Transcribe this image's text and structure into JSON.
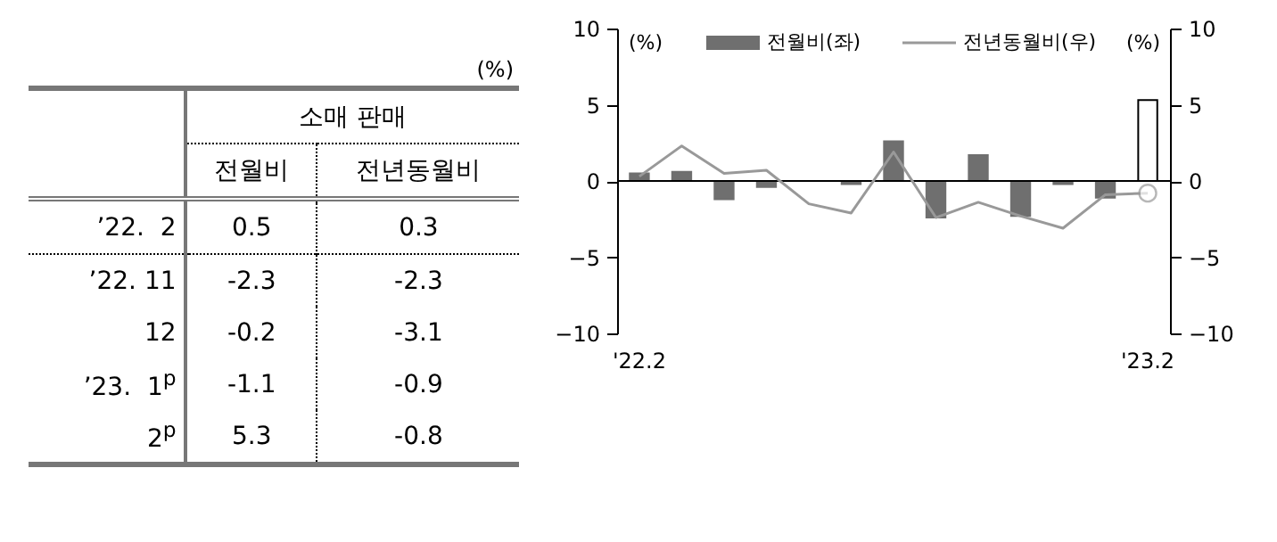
{
  "chart_data": [
    {
      "type": "other",
      "title": "소매 판매",
      "annotations": [
        "(%)"
      ],
      "data_labels": true,
      "categories": [
        "’22.  2",
        "’22. 11",
        "12",
        "’23.  1$^{p}$",
        "2$^{p}$"
      ],
      "series": [
        {
          "name": "전월비",
          "values": [
            0.5,
            -2.3,
            -0.2,
            -1.1,
            5.3
          ]
        },
        {
          "name": "전년동월비",
          "values": [
            0.3,
            -2.3,
            -3.1,
            -0.9,
            -0.8
          ]
        }
      ]
    },
    {
      "type": "bar",
      "ylabel": "(%)",
      "y2label": "(%)",
      "legend": "top",
      "categories": [
        "'22.2",
        null,
        null,
        null,
        null,
        null,
        null,
        null,
        null,
        null,
        null,
        null,
        "'23.2"
      ],
      "ylim": [
        -10,
        10
      ],
      "yticks": [
        -10,
        -5,
        0,
        5,
        10
      ],
      "y2lim": [
        -10,
        10
      ],
      "y2ticks": [
        -10,
        -5,
        0,
        5,
        10
      ],
      "series": [
        {
          "name": "전월비(좌)",
          "type": "bar",
          "color": "#6f6f6f",
          "colors": [
            "#6f6f6f",
            "#6f6f6f",
            "#6f6f6f",
            "#6f6f6f",
            "#6f6f6f",
            "#6f6f6f",
            "#6f6f6f",
            "#6f6f6f",
            "#6f6f6f",
            "#6f6f6f",
            "#6f6f6f",
            "#6f6f6f",
            "#ffffff"
          ],
          "values": [
            0.5,
            0.6,
            -1.2,
            -0.4,
            0,
            -0.2,
            2.6,
            -2.4,
            1.7,
            -2.3,
            -0.2,
            -1.1,
            5.3
          ]
        },
        {
          "name": "전년동월비(우)",
          "type": "line",
          "axis": "y2",
          "color": "#999999",
          "marker": "none",
          "values": [
            0.3,
            2.3,
            0.5,
            0.7,
            -1.5,
            -2.1,
            1.9,
            -2.4,
            -1.4,
            -2.3,
            -3.1,
            -0.9,
            -0.8
          ]
        },
        {
          "type": "scatter",
          "axis": "y2",
          "color": "#999999",
          "marker": "circle",
          "values": [
            null,
            null,
            null,
            null,
            null,
            null,
            null,
            null,
            null,
            null,
            null,
            null,
            -0.8
          ]
        }
      ]
    }
  ]
}
